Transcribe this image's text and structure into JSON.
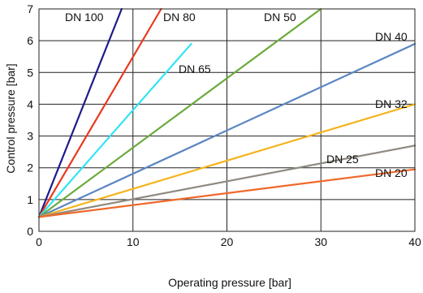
{
  "chart_data": {
    "type": "line",
    "title": "",
    "xlabel": "Operating pressure [bar]",
    "ylabel": "Control pressure [bar]",
    "xlim": [
      0,
      40
    ],
    "ylim": [
      0,
      7
    ],
    "xticks": [
      0,
      10,
      20,
      30,
      40
    ],
    "yticks": [
      0,
      1,
      2,
      3,
      4,
      5,
      6,
      7
    ],
    "grid": true,
    "series": [
      {
        "name": "DN 100",
        "color": "#1f1a8c",
        "x": [
          0,
          8.8
        ],
        "y": [
          0.45,
          7.0
        ]
      },
      {
        "name": "DN 80",
        "color": "#e8391f",
        "x": [
          0,
          13.0
        ],
        "y": [
          0.45,
          7.0
        ]
      },
      {
        "name": "DN 65",
        "color": "#2fe4f5",
        "x": [
          0,
          16.2
        ],
        "y": [
          0.45,
          5.9
        ]
      },
      {
        "name": "DN 50",
        "color": "#6aaa3a",
        "x": [
          0,
          30.0
        ],
        "y": [
          0.45,
          7.0
        ]
      },
      {
        "name": "DN 40",
        "color": "#5b86c2",
        "x": [
          0,
          40.0
        ],
        "y": [
          0.45,
          5.9
        ]
      },
      {
        "name": "DN 32",
        "color": "#f5b41e",
        "x": [
          0,
          40.0
        ],
        "y": [
          0.45,
          4.0
        ]
      },
      {
        "name": "DN 25",
        "color": "#8f8a80",
        "x": [
          0,
          40.0
        ],
        "y": [
          0.45,
          2.7
        ]
      },
      {
        "name": "DN 20",
        "color": "#f0682a",
        "x": [
          0,
          40.0
        ],
        "y": [
          0.45,
          1.95
        ]
      }
    ]
  }
}
